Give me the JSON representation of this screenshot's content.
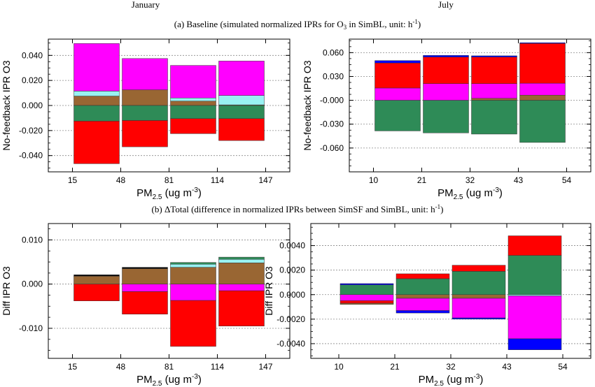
{
  "header": {
    "col_left": "January",
    "col_right": "July"
  },
  "captions": {
    "a": {
      "main": "(a) Baseline (simulated normalized IPRs for O",
      "sub": "3",
      "mid": " in SimBL, unit: h",
      "sup": "-1",
      "end": ")"
    },
    "b": {
      "main": "(b) ΔTotal (difference in normalized IPRs between SimSF and SimBL, unit: h",
      "sup": "-1",
      "end": ")"
    }
  },
  "xaxis_label": {
    "pre": "PM",
    "sub": "2.5",
    "mid": " (ug m",
    "sup": "-3",
    "end": ")"
  },
  "colors": {
    "magenta": "#ff00ff",
    "cyan": "#99f2f2",
    "brown": "#996633",
    "green": "#2e8b57",
    "red": "#ff0000",
    "blue": "#0000ff",
    "white": "#ffffff",
    "black": "#000000"
  },
  "chart_data": [
    {
      "id": "jan_baseline",
      "type": "bar",
      "stacked": true,
      "column": "January",
      "ylabel": "No-feedback IPR O3",
      "xlabel": "PM2.5 (ug m-3)",
      "x_ticks": [
        "15",
        "48",
        "81",
        "114",
        "147"
      ],
      "ylim": [
        -0.053,
        0.053
      ],
      "yticks": [
        {
          "v": 0.04,
          "l": "0.040"
        },
        {
          "v": 0.02,
          "l": "0.020"
        },
        {
          "v": 0.0,
          "l": "0.000"
        },
        {
          "v": -0.02,
          "l": "-0.020"
        },
        {
          "v": -0.04,
          "l": "-0.040"
        }
      ],
      "bars": [
        {
          "bin": "15-48",
          "segments": [
            {
              "color": "brown",
              "y0": 0.0,
              "y1": 0.0075
            },
            {
              "color": "cyan",
              "y0": 0.0075,
              "y1": 0.0115
            },
            {
              "color": "magenta",
              "y0": 0.0115,
              "y1": 0.0495
            },
            {
              "color": "green",
              "y0": -0.0125,
              "y1": 0.0
            },
            {
              "color": "red",
              "y0": -0.0465,
              "y1": -0.0125
            }
          ]
        },
        {
          "bin": "48-81",
          "segments": [
            {
              "color": "brown",
              "y0": 0.0,
              "y1": 0.0125
            },
            {
              "color": "magenta",
              "y0": 0.0125,
              "y1": 0.0375
            },
            {
              "color": "green",
              "y0": -0.012,
              "y1": 0.0
            },
            {
              "color": "red",
              "y0": -0.033,
              "y1": -0.012
            }
          ]
        },
        {
          "bin": "81-114",
          "segments": [
            {
              "color": "brown",
              "y0": 0.0,
              "y1": 0.0035
            },
            {
              "color": "cyan",
              "y0": 0.0035,
              "y1": 0.006
            },
            {
              "color": "magenta",
              "y0": 0.006,
              "y1": 0.032
            },
            {
              "color": "green",
              "y0": -0.0105,
              "y1": 0.0
            },
            {
              "color": "red",
              "y0": -0.0225,
              "y1": -0.0105
            }
          ]
        },
        {
          "bin": "114-147",
          "segments": [
            {
              "color": "brown",
              "y0": 0.0,
              "y1": 0.0005
            },
            {
              "color": "cyan",
              "y0": 0.0005,
              "y1": 0.008
            },
            {
              "color": "magenta",
              "y0": 0.008,
              "y1": 0.0355
            },
            {
              "color": "green",
              "y0": -0.0105,
              "y1": 0.0
            },
            {
              "color": "red",
              "y0": -0.028,
              "y1": -0.0105
            }
          ]
        }
      ]
    },
    {
      "id": "jul_baseline",
      "type": "bar",
      "stacked": true,
      "column": "July",
      "ylabel": "No-feedback IPR O3",
      "xlabel": "PM2.5 (ug m-3)",
      "x_ticks": [
        "10",
        "21",
        "32",
        "43",
        "54"
      ],
      "ylim": [
        -0.09,
        0.077
      ],
      "yticks": [
        {
          "v": 0.06,
          "l": "0.060"
        },
        {
          "v": 0.03,
          "l": "0.030"
        },
        {
          "v": 0.0,
          "l": "-0.000"
        },
        {
          "v": -0.03,
          "l": "-0.030"
        },
        {
          "v": -0.06,
          "l": "-0.060"
        }
      ],
      "bars": [
        {
          "bin": "10-21",
          "segments": [
            {
              "color": "magenta",
              "y0": 0.0,
              "y1": 0.0155
            },
            {
              "color": "red",
              "y0": 0.0155,
              "y1": 0.047
            },
            {
              "color": "blue",
              "y0": 0.047,
              "y1": 0.05
            },
            {
              "color": "green",
              "y0": -0.0385,
              "y1": 0.0
            }
          ]
        },
        {
          "bin": "21-32",
          "segments": [
            {
              "color": "magenta",
              "y0": 0.0,
              "y1": 0.021
            },
            {
              "color": "red",
              "y0": 0.021,
              "y1": 0.0545
            },
            {
              "color": "blue",
              "y0": 0.0545,
              "y1": 0.0565
            },
            {
              "color": "green",
              "y0": -0.041,
              "y1": 0.0
            }
          ]
        },
        {
          "bin": "32-43",
          "segments": [
            {
              "color": "brown",
              "y0": 0.0,
              "y1": 0.0025
            },
            {
              "color": "magenta",
              "y0": 0.0025,
              "y1": 0.021
            },
            {
              "color": "red",
              "y0": 0.021,
              "y1": 0.0545
            },
            {
              "color": "blue",
              "y0": 0.0545,
              "y1": 0.056
            },
            {
              "color": "green",
              "y0": -0.0425,
              "y1": 0.0
            }
          ]
        },
        {
          "bin": "43-54",
          "segments": [
            {
              "color": "brown",
              "y0": 0.0,
              "y1": 0.0065
            },
            {
              "color": "magenta",
              "y0": 0.0065,
              "y1": 0.0215
            },
            {
              "color": "red",
              "y0": 0.0215,
              "y1": 0.0715
            },
            {
              "color": "blue",
              "y0": 0.0715,
              "y1": 0.0725
            },
            {
              "color": "green",
              "y0": -0.053,
              "y1": 0.0
            }
          ]
        }
      ]
    },
    {
      "id": "jan_diff",
      "type": "bar",
      "stacked": true,
      "column": "January",
      "ylabel": "Diff IPR O3",
      "xlabel": "PM2.5 (ug m-3)",
      "x_ticks": [
        "15",
        "48",
        "81",
        "114",
        "147"
      ],
      "ylim": [
        -0.0168,
        0.0137
      ],
      "yticks": [
        {
          "v": 0.01,
          "l": "0.010"
        },
        {
          "v": 0.0,
          "l": "0.000"
        },
        {
          "v": -0.01,
          "l": "-0.010"
        }
      ],
      "bars": [
        {
          "bin": "15-48",
          "segments": [
            {
              "color": "brown",
              "y0": 0.0,
              "y1": 0.0018
            },
            {
              "color": "black",
              "y0": 0.0018,
              "y1": 0.0021
            },
            {
              "color": "red",
              "y0": -0.0038,
              "y1": 0.0
            }
          ]
        },
        {
          "bin": "48-81",
          "segments": [
            {
              "color": "brown",
              "y0": 0.0,
              "y1": 0.0035
            },
            {
              "color": "black",
              "y0": 0.0035,
              "y1": 0.0038
            },
            {
              "color": "magenta",
              "y0": -0.0017,
              "y1": 0.0
            },
            {
              "color": "red",
              "y0": -0.0068,
              "y1": -0.0017
            }
          ]
        },
        {
          "bin": "81-114",
          "segments": [
            {
              "color": "brown",
              "y0": 0.0,
              "y1": 0.0038
            },
            {
              "color": "cyan",
              "y0": 0.0038,
              "y1": 0.0045
            },
            {
              "color": "green",
              "y0": 0.0045,
              "y1": 0.0049
            },
            {
              "color": "magenta",
              "y0": -0.0037,
              "y1": 0.0
            },
            {
              "color": "red",
              "y0": -0.0141,
              "y1": -0.0037
            }
          ]
        },
        {
          "bin": "114-147",
          "segments": [
            {
              "color": "brown",
              "y0": 0.0,
              "y1": 0.0048
            },
            {
              "color": "cyan",
              "y0": 0.0048,
              "y1": 0.0056
            },
            {
              "color": "green",
              "y0": 0.0056,
              "y1": 0.0061
            },
            {
              "color": "magenta",
              "y0": -0.0015,
              "y1": 0.0
            },
            {
              "color": "red",
              "y0": -0.0095,
              "y1": -0.0015
            }
          ]
        }
      ]
    },
    {
      "id": "jul_diff",
      "type": "bar",
      "stacked": true,
      "column": "July",
      "ylabel": "Diff IPR O3",
      "xlabel": "PM2.5 (ug m-3)",
      "x_ticks": [
        "10",
        "21",
        "32",
        "43",
        "54"
      ],
      "ylim": [
        -0.0052,
        0.0058
      ],
      "yticks": [
        {
          "v": 0.004,
          "l": "0.0040"
        },
        {
          "v": 0.002,
          "l": "0.0020"
        },
        {
          "v": 0.0,
          "l": "0.0000"
        },
        {
          "v": -0.002,
          "l": "-0.0020"
        },
        {
          "v": -0.004,
          "l": "-0.0040"
        }
      ],
      "bars": [
        {
          "bin": "10-21",
          "segments": [
            {
              "color": "green",
              "y0": 0.0,
              "y1": 0.0008
            },
            {
              "color": "blue",
              "y0": 0.0008,
              "y1": 0.0009
            },
            {
              "color": "magenta",
              "y0": -0.0005,
              "y1": 0.0
            },
            {
              "color": "red",
              "y0": -0.0007,
              "y1": -0.0005
            },
            {
              "color": "brown",
              "y0": -0.0008,
              "y1": -0.0007
            }
          ]
        },
        {
          "bin": "21-32",
          "segments": [
            {
              "color": "green",
              "y0": 0.0,
              "y1": 0.0013
            },
            {
              "color": "red",
              "y0": 0.0013,
              "y1": 0.0017
            },
            {
              "color": "brown",
              "y0": -0.0003,
              "y1": 0.0
            },
            {
              "color": "magenta",
              "y0": -0.0013,
              "y1": -0.0003
            },
            {
              "color": "blue",
              "y0": -0.0015,
              "y1": -0.0013
            }
          ]
        },
        {
          "bin": "32-43",
          "segments": [
            {
              "color": "green",
              "y0": 0.0,
              "y1": 0.0019
            },
            {
              "color": "red",
              "y0": 0.0019,
              "y1": 0.0024
            },
            {
              "color": "brown",
              "y0": -0.0003,
              "y1": 0.0
            },
            {
              "color": "magenta",
              "y0": -0.0019,
              "y1": -0.0003
            },
            {
              "color": "blue",
              "y0": -0.002,
              "y1": -0.0019
            }
          ]
        },
        {
          "bin": "43-54",
          "segments": [
            {
              "color": "green",
              "y0": 0.0,
              "y1": 0.0032
            },
            {
              "color": "red",
              "y0": 0.0032,
              "y1": 0.0048
            },
            {
              "color": "cyan",
              "y0": -0.0001,
              "y1": 0.0
            },
            {
              "color": "magenta",
              "y0": -0.0036,
              "y1": -0.0001
            },
            {
              "color": "blue",
              "y0": -0.0045,
              "y1": -0.0036
            }
          ]
        }
      ]
    }
  ]
}
